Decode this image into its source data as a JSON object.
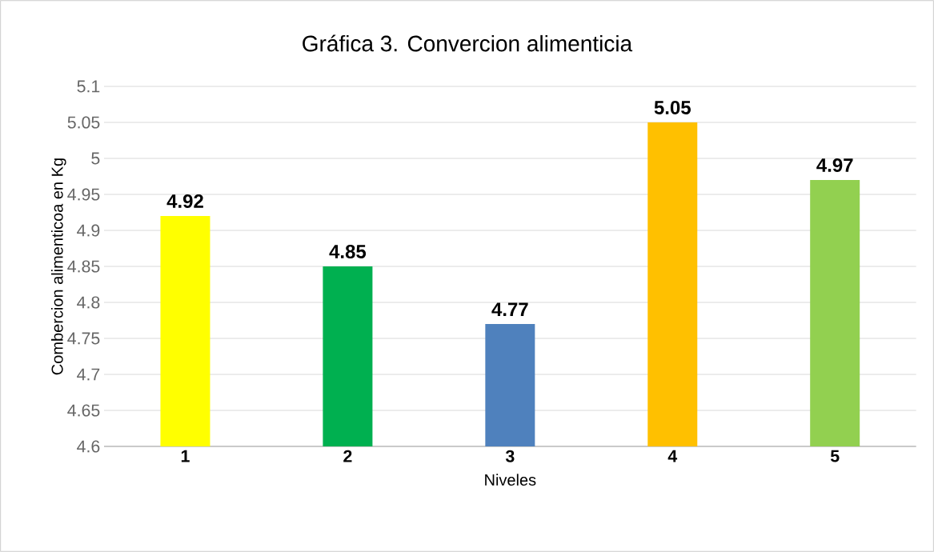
{
  "chart_data": {
    "type": "bar",
    "title": "Gráfica 3. Convercion alimenticia",
    "xlabel": "Niveles",
    "ylabel": "Combercion alimenticoa en Kg",
    "categories": [
      "1",
      "2",
      "3",
      "4",
      "5"
    ],
    "values": [
      4.92,
      4.85,
      4.77,
      5.05,
      4.97
    ],
    "colors": [
      "#ffff00",
      "#00b050",
      "#4f81bd",
      "#ffc000",
      "#92d050"
    ],
    "ylim": [
      4.6,
      5.1
    ],
    "yticks": [
      4.6,
      4.65,
      4.7,
      4.75,
      4.8,
      4.85,
      4.9,
      4.95,
      5,
      5.05,
      5.1
    ],
    "grid": "y",
    "data_labels": true
  }
}
